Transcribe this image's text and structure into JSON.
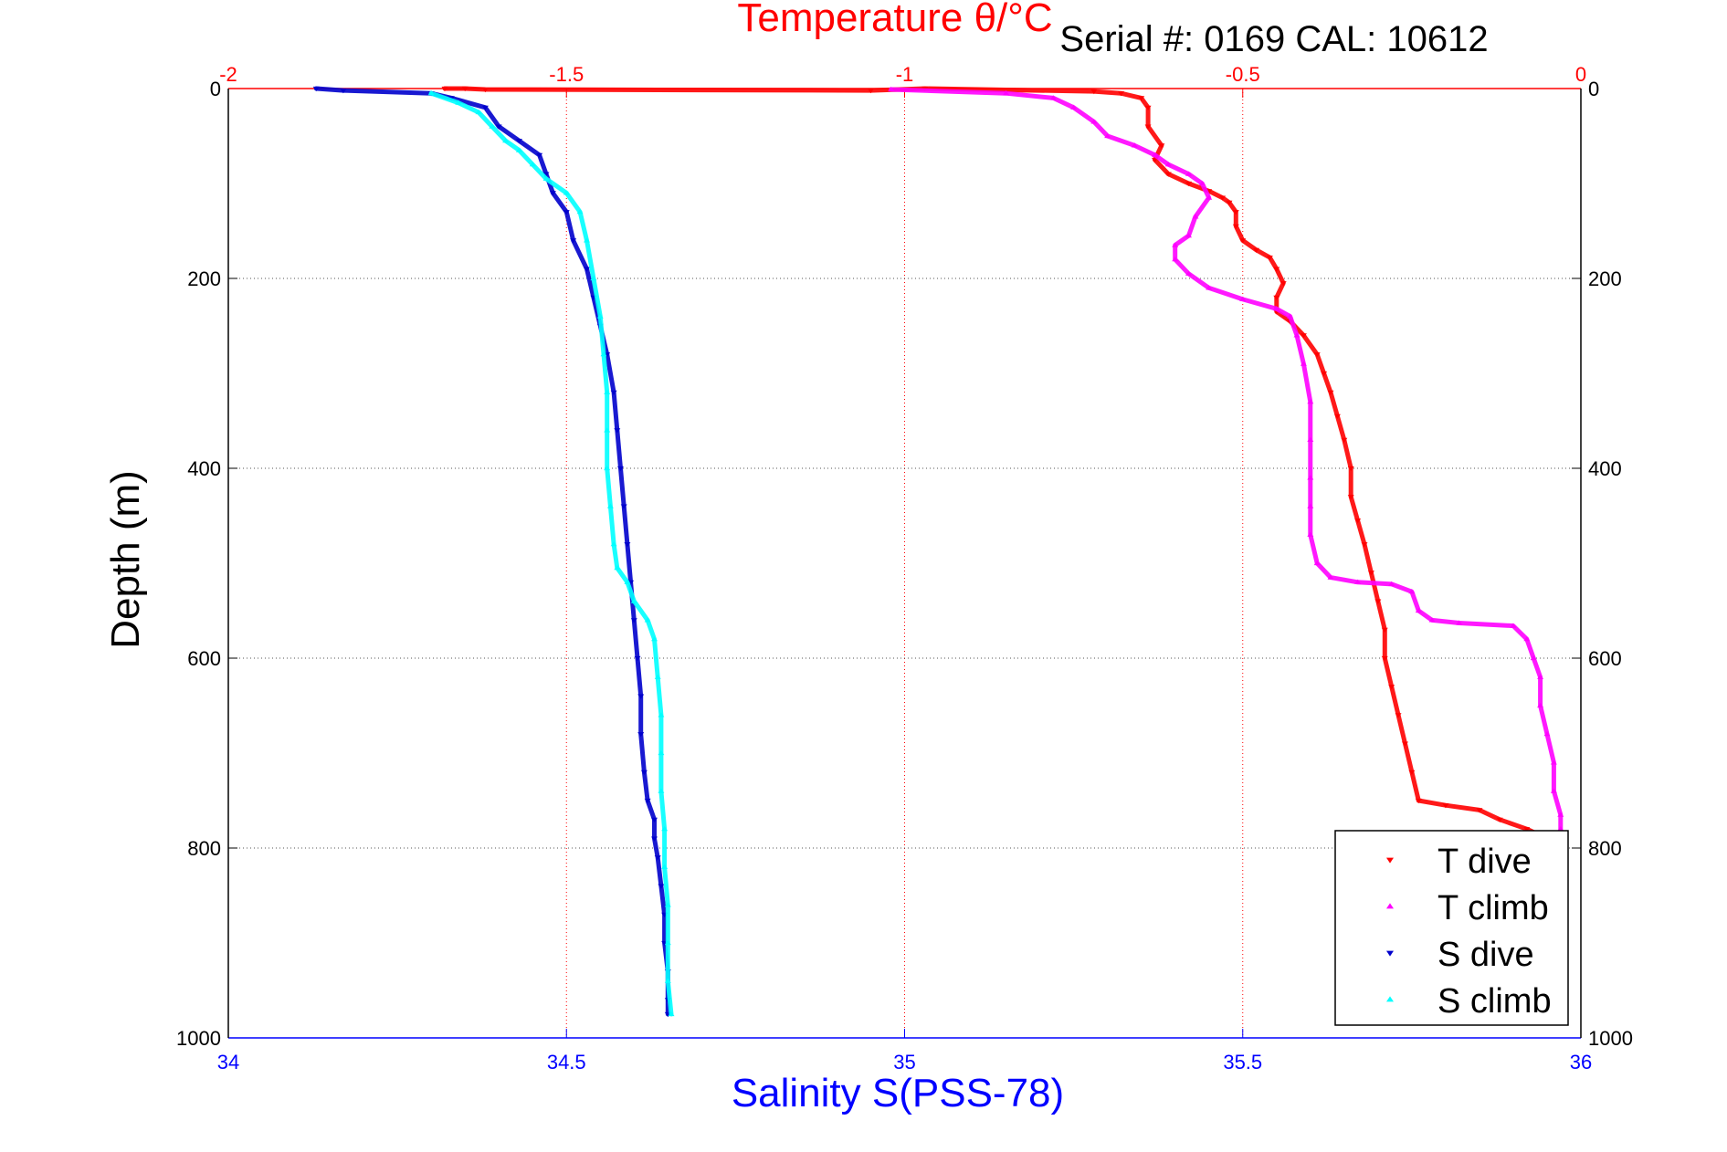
{
  "chart_data": {
    "type": "scatter",
    "title_top": "Temperature θ/°C",
    "serial_text": "Serial #: 0169 CAL: 10612",
    "xlabel": "Salinity S(PSS-78)",
    "ylabel": "Depth (m)",
    "bottom_axis": {
      "min": 34,
      "max": 36,
      "ticks": [
        "34",
        "34.5",
        "35",
        "35.5",
        "36"
      ],
      "color": "#0000ff"
    },
    "top_axis": {
      "min": -2,
      "max": 0,
      "ticks": [
        "-2",
        "-1.5",
        "-1",
        "-0.5",
        "0"
      ],
      "color": "#ff0000"
    },
    "y_axis": {
      "min": 0,
      "max": 1000,
      "reversed": true,
      "ticks": [
        "0",
        "200",
        "400",
        "600",
        "800",
        "1000"
      ]
    },
    "grid": true,
    "legend_position": "bottom-right",
    "series": [
      {
        "name": "T dive",
        "axis": "top",
        "color": "#ff0000",
        "marker": "triangle-down",
        "points": [
          [
            -1.68,
            0
          ],
          [
            -1.65,
            0
          ],
          [
            -1.62,
            1
          ],
          [
            -1.05,
            2
          ],
          [
            -0.97,
            0
          ],
          [
            -0.72,
            3
          ],
          [
            -0.68,
            5
          ],
          [
            -0.65,
            10
          ],
          [
            -0.64,
            20
          ],
          [
            -0.64,
            40
          ],
          [
            -0.62,
            60
          ],
          [
            -0.63,
            75
          ],
          [
            -0.61,
            90
          ],
          [
            -0.58,
            100
          ],
          [
            -0.55,
            108
          ],
          [
            -0.53,
            115
          ],
          [
            -0.52,
            120
          ],
          [
            -0.51,
            130
          ],
          [
            -0.51,
            145
          ],
          [
            -0.5,
            160
          ],
          [
            -0.48,
            170
          ],
          [
            -0.46,
            178
          ],
          [
            -0.45,
            190
          ],
          [
            -0.44,
            205
          ],
          [
            -0.45,
            220
          ],
          [
            -0.45,
            235
          ],
          [
            -0.43,
            245
          ],
          [
            -0.41,
            260
          ],
          [
            -0.39,
            280
          ],
          [
            -0.38,
            300
          ],
          [
            -0.37,
            320
          ],
          [
            -0.36,
            345
          ],
          [
            -0.35,
            370
          ],
          [
            -0.34,
            400
          ],
          [
            -0.34,
            430
          ],
          [
            -0.33,
            455
          ],
          [
            -0.32,
            480
          ],
          [
            -0.31,
            510
          ],
          [
            -0.3,
            540
          ],
          [
            -0.29,
            570
          ],
          [
            -0.29,
            600
          ],
          [
            -0.28,
            630
          ],
          [
            -0.27,
            660
          ],
          [
            -0.26,
            690
          ],
          [
            -0.25,
            720
          ],
          [
            -0.24,
            750
          ],
          [
            -0.2,
            755
          ],
          [
            -0.15,
            760
          ],
          [
            -0.12,
            770
          ],
          [
            -0.08,
            780
          ],
          [
            -0.05,
            790
          ]
        ]
      },
      {
        "name": "T climb",
        "axis": "top",
        "color": "#ff00ff",
        "marker": "triangle-up",
        "points": [
          [
            -1.02,
            1
          ],
          [
            -0.85,
            5
          ],
          [
            -0.78,
            10
          ],
          [
            -0.75,
            20
          ],
          [
            -0.72,
            35
          ],
          [
            -0.7,
            50
          ],
          [
            -0.66,
            60
          ],
          [
            -0.63,
            70
          ],
          [
            -0.61,
            80
          ],
          [
            -0.58,
            90
          ],
          [
            -0.56,
            100
          ],
          [
            -0.55,
            115
          ],
          [
            -0.57,
            135
          ],
          [
            -0.58,
            155
          ],
          [
            -0.6,
            165
          ],
          [
            -0.6,
            180
          ],
          [
            -0.58,
            195
          ],
          [
            -0.55,
            210
          ],
          [
            -0.5,
            222
          ],
          [
            -0.45,
            232
          ],
          [
            -0.43,
            240
          ],
          [
            -0.42,
            260
          ],
          [
            -0.41,
            290
          ],
          [
            -0.4,
            330
          ],
          [
            -0.4,
            370
          ],
          [
            -0.4,
            410
          ],
          [
            -0.4,
            440
          ],
          [
            -0.4,
            470
          ],
          [
            -0.39,
            500
          ],
          [
            -0.37,
            515
          ],
          [
            -0.33,
            520
          ],
          [
            -0.28,
            522
          ],
          [
            -0.25,
            530
          ],
          [
            -0.24,
            550
          ],
          [
            -0.22,
            560
          ],
          [
            -0.18,
            563
          ],
          [
            -0.1,
            566
          ],
          [
            -0.08,
            580
          ],
          [
            -0.07,
            600
          ],
          [
            -0.06,
            620
          ],
          [
            -0.06,
            650
          ],
          [
            -0.05,
            680
          ],
          [
            -0.04,
            710
          ],
          [
            -0.04,
            740
          ],
          [
            -0.03,
            765
          ],
          [
            -0.03,
            780
          ]
        ]
      },
      {
        "name": "S dive",
        "axis": "bottom",
        "color": "#0000cc",
        "marker": "triangle-down",
        "points": [
          [
            34.13,
            0
          ],
          [
            34.17,
            2
          ],
          [
            34.3,
            5
          ],
          [
            34.33,
            10
          ],
          [
            34.38,
            20
          ],
          [
            34.4,
            40
          ],
          [
            34.43,
            55
          ],
          [
            34.46,
            70
          ],
          [
            34.47,
            90
          ],
          [
            34.48,
            110
          ],
          [
            34.5,
            130
          ],
          [
            34.51,
            160
          ],
          [
            34.53,
            190
          ],
          [
            34.54,
            220
          ],
          [
            34.55,
            250
          ],
          [
            34.56,
            280
          ],
          [
            34.57,
            320
          ],
          [
            34.575,
            360
          ],
          [
            34.58,
            400
          ],
          [
            34.585,
            440
          ],
          [
            34.59,
            480
          ],
          [
            34.595,
            520
          ],
          [
            34.6,
            560
          ],
          [
            34.605,
            600
          ],
          [
            34.61,
            640
          ],
          [
            34.61,
            680
          ],
          [
            34.615,
            720
          ],
          [
            34.62,
            750
          ],
          [
            34.63,
            770
          ],
          [
            34.63,
            790
          ],
          [
            34.635,
            810
          ],
          [
            34.64,
            840
          ],
          [
            34.645,
            870
          ],
          [
            34.645,
            900
          ],
          [
            34.65,
            930
          ],
          [
            34.65,
            960
          ],
          [
            34.65,
            975
          ]
        ]
      },
      {
        "name": "S climb",
        "axis": "bottom",
        "color": "#00ffff",
        "marker": "triangle-up",
        "points": [
          [
            34.3,
            5
          ],
          [
            34.34,
            15
          ],
          [
            34.37,
            25
          ],
          [
            34.39,
            40
          ],
          [
            34.41,
            55
          ],
          [
            34.43,
            65
          ],
          [
            34.45,
            80
          ],
          [
            34.47,
            95
          ],
          [
            34.5,
            110
          ],
          [
            34.52,
            130
          ],
          [
            34.53,
            160
          ],
          [
            34.54,
            200
          ],
          [
            34.55,
            240
          ],
          [
            34.555,
            280
          ],
          [
            34.56,
            320
          ],
          [
            34.56,
            360
          ],
          [
            34.56,
            400
          ],
          [
            34.565,
            440
          ],
          [
            34.57,
            480
          ],
          [
            34.575,
            505
          ],
          [
            34.59,
            520
          ],
          [
            34.6,
            540
          ],
          [
            34.62,
            560
          ],
          [
            34.63,
            580
          ],
          [
            34.635,
            620
          ],
          [
            34.64,
            660
          ],
          [
            34.64,
            700
          ],
          [
            34.64,
            740
          ],
          [
            34.645,
            780
          ],
          [
            34.645,
            820
          ],
          [
            34.65,
            860
          ],
          [
            34.65,
            900
          ],
          [
            34.65,
            940
          ],
          [
            34.655,
            975
          ]
        ]
      }
    ]
  }
}
